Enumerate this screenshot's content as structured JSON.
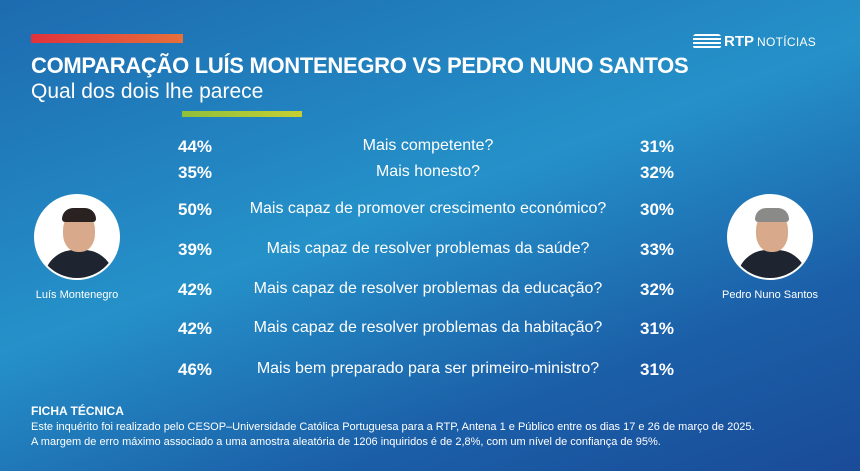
{
  "header": {
    "title": "COMPARAÇÃO LUÍS MONTENEGRO VS PEDRO NUNO SANTOS",
    "subtitle": "Qual dos dois lhe parece",
    "logo_rtp": "RTP",
    "logo_noticias": "NOTÍCIAS"
  },
  "candidates": {
    "left": "Luís Montenegro",
    "right": "Pedro Nuno Santos"
  },
  "rows": [
    {
      "q": "Mais competente?",
      "left": "44%",
      "right": "31%"
    },
    {
      "q": "Mais honesto?",
      "left": "35%",
      "right": "32%"
    },
    {
      "q": "Mais capaz de promover crescimento económico?",
      "left": "50%",
      "right": "30%"
    },
    {
      "q": "Mais capaz de resolver problemas da saúde?",
      "left": "39%",
      "right": "33%"
    },
    {
      "q": "Mais capaz de resolver problemas da educação?",
      "left": "42%",
      "right": "32%"
    },
    {
      "q": "Mais capaz de resolver problemas da habitação?",
      "left": "42%",
      "right": "31%"
    },
    {
      "q": "Mais bem preparado para ser primeiro-ministro?",
      "left": "46%",
      "right": "31%"
    }
  ],
  "ficha": {
    "title": "FICHA TÉCNICA",
    "line1": "Este inquérito foi realizado pelo CESOP–Universidade Católica Portuguesa para a RTP, Antena 1 e Público entre os dias 17 e 26 de março de 2025.",
    "line2": "A margem de erro máximo associado a uma amostra aleatória de 1206 inquiridos é de 2,8%, com um nível de confiança de 95%."
  }
}
